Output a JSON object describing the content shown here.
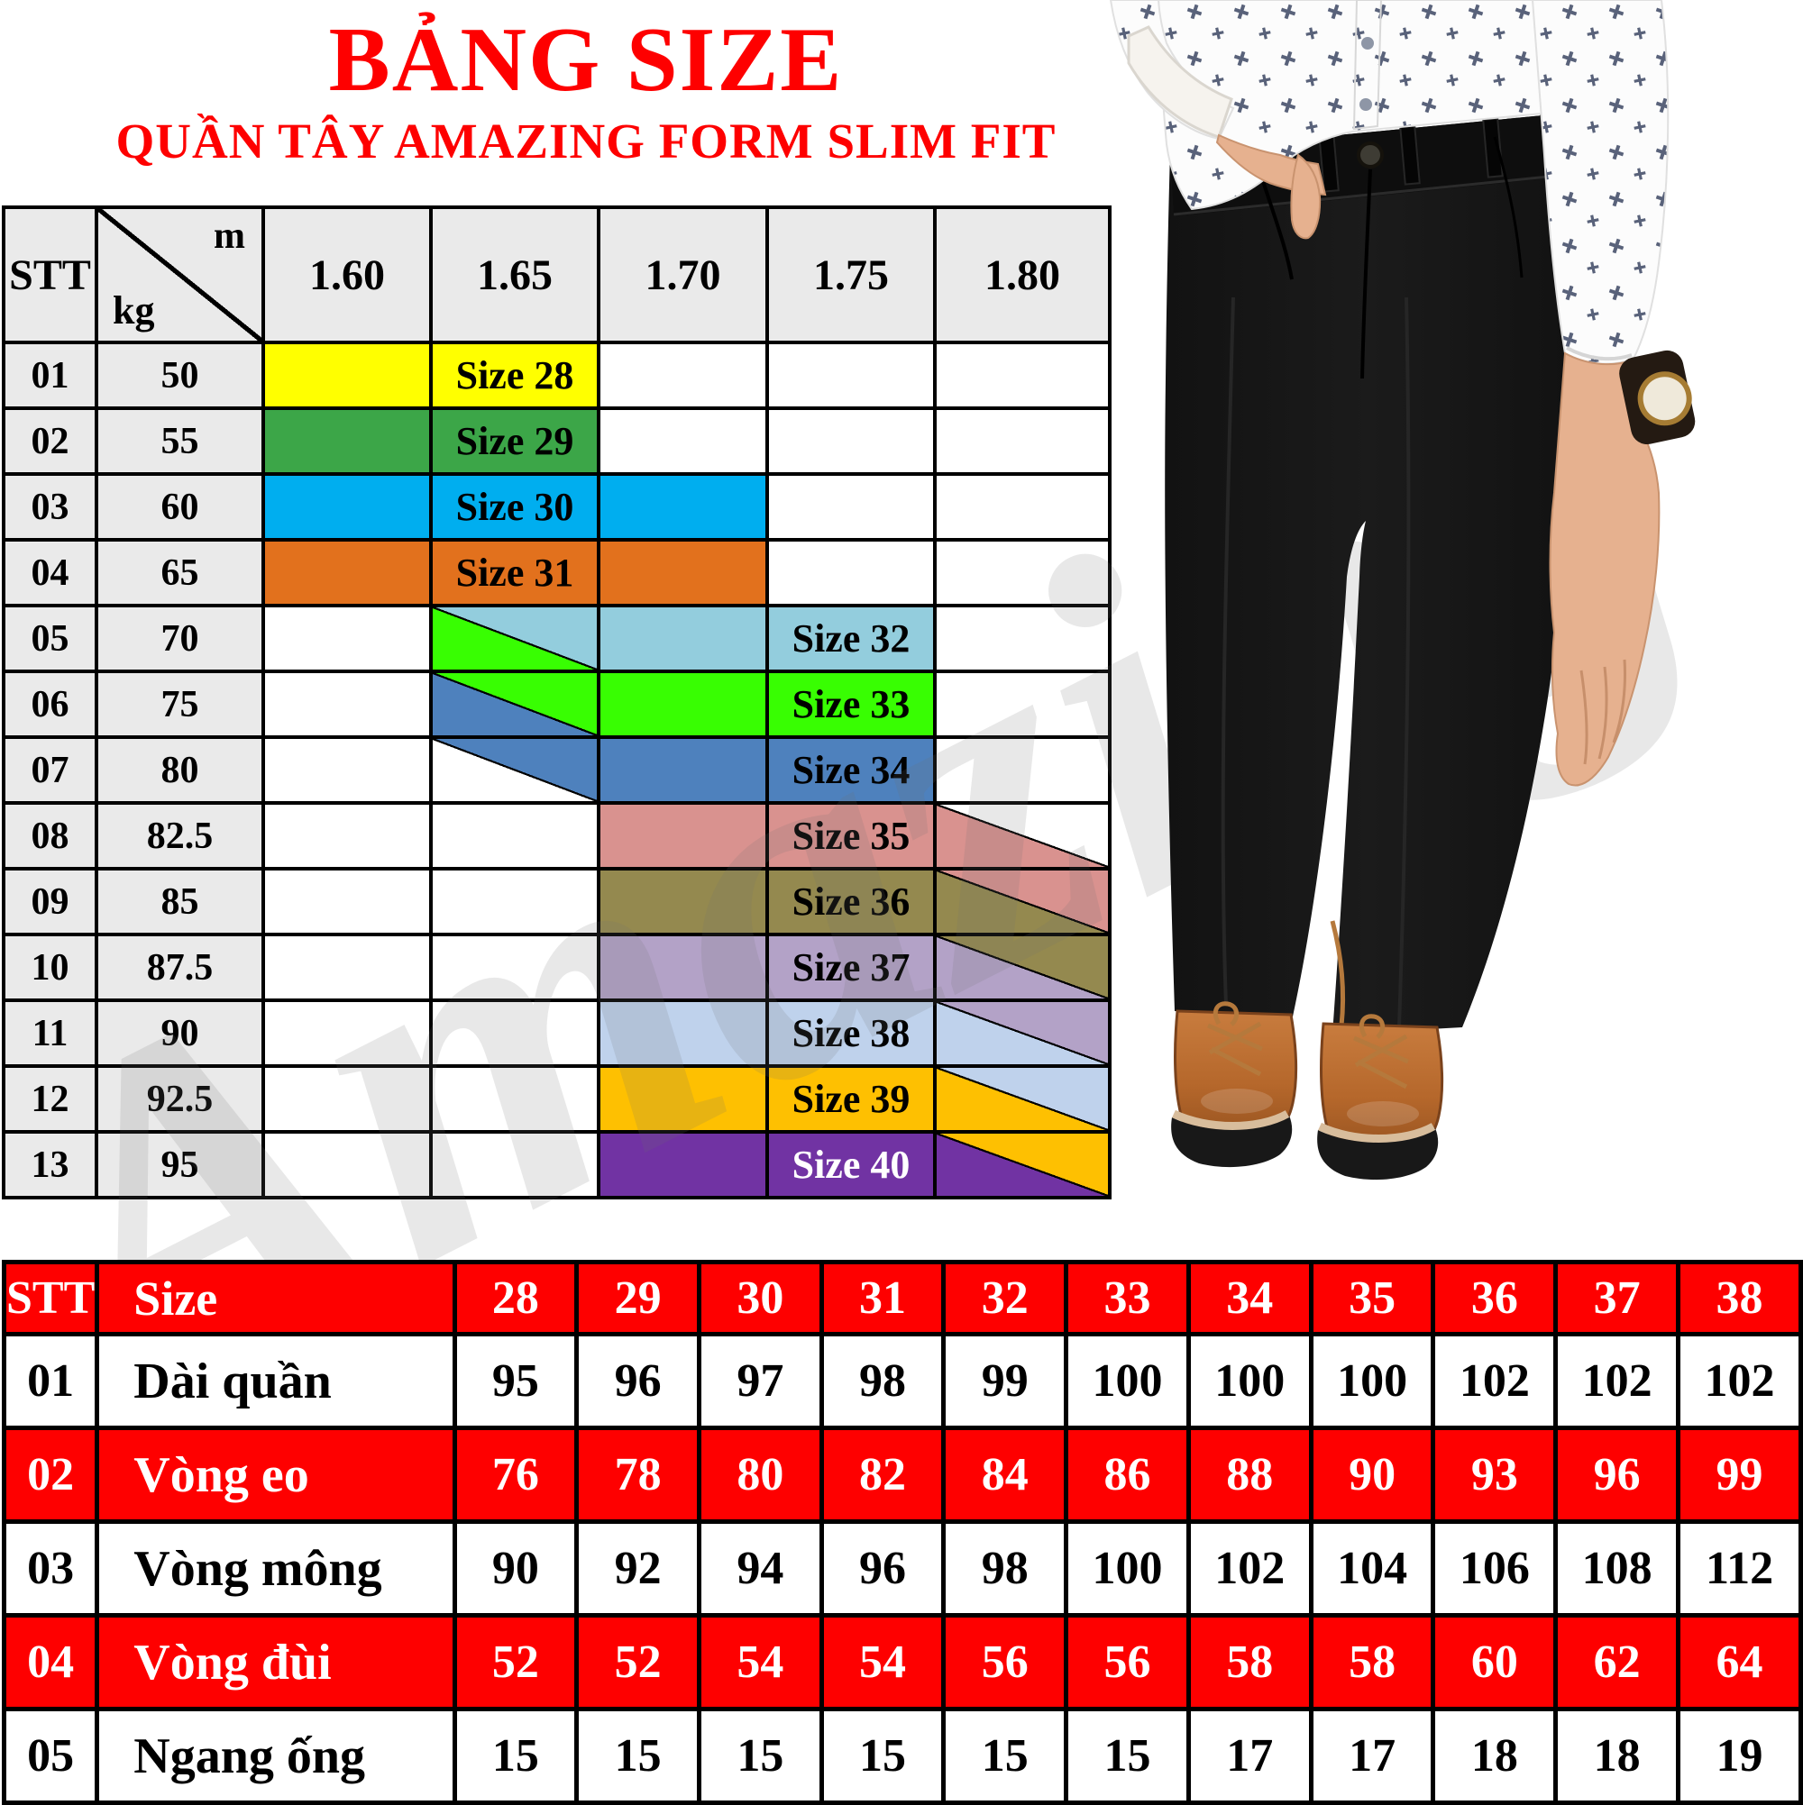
{
  "title": "BẢNG SIZE",
  "subtitle": "QUẦN TÂY AMAZING FORM SLIM FIT",
  "accent_red": "#FE0000",
  "watermark": {
    "text": "Amazing",
    "registered": "®"
  },
  "size_matrix": {
    "corner": {
      "stt": "STT",
      "col_label": "m",
      "row_label": "kg"
    },
    "height_headers": [
      "1.60",
      "1.65",
      "1.70",
      "1.75",
      "1.80"
    ],
    "rows": [
      {
        "stt": "01",
        "kg": "50",
        "cells": [
          {
            "bg": "#FFFF00"
          },
          {
            "bg": "#FFFF00",
            "label": "Size 28"
          },
          null,
          null,
          null
        ]
      },
      {
        "stt": "02",
        "kg": "55",
        "cells": [
          {
            "bg": "#3CA648"
          },
          {
            "bg": "#3CA648",
            "label": "Size 29"
          },
          null,
          null,
          null
        ]
      },
      {
        "stt": "03",
        "kg": "60",
        "cells": [
          {
            "bg": "#00AEEF"
          },
          {
            "bg": "#00AEEF",
            "label": "Size 30"
          },
          {
            "bg": "#00AEEF"
          },
          null,
          null
        ]
      },
      {
        "stt": "04",
        "kg": "65",
        "cells": [
          {
            "bg": "#E2711D"
          },
          {
            "bg": "#E2711D",
            "label": "Size 31"
          },
          {
            "bg": "#E2711D"
          },
          null,
          null
        ]
      },
      {
        "stt": "05",
        "kg": "70",
        "cells": [
          null,
          {
            "diag": {
              "lower": "#38FE02",
              "upper": "#93CDDD"
            }
          },
          {
            "bg": "#93CDDD"
          },
          {
            "bg": "#93CDDD",
            "label": "Size 32"
          },
          null
        ]
      },
      {
        "stt": "06",
        "kg": "75",
        "cells": [
          null,
          {
            "diag": {
              "lower": "#4E81BD",
              "upper": "#38FE02"
            }
          },
          {
            "bg": "#38FE02"
          },
          {
            "bg": "#38FE02",
            "label": "Size 33"
          },
          null
        ]
      },
      {
        "stt": "07",
        "kg": "80",
        "cells": [
          null,
          {
            "diag": {
              "lower": "#FFFFFF",
              "upper": "#4E81BD"
            }
          },
          {
            "bg": "#4E81BD"
          },
          {
            "bg": "#4E81BD",
            "label": "Size 34"
          },
          null
        ]
      },
      {
        "stt": "08",
        "kg": "82.5",
        "cells": [
          null,
          null,
          {
            "bg": "#D9928F"
          },
          {
            "bg": "#D9928F",
            "label": "Size 35"
          },
          {
            "diag": {
              "lower": "#D9928F",
              "upper": "#FFFFFF"
            }
          }
        ]
      },
      {
        "stt": "09",
        "kg": "85",
        "cells": [
          null,
          null,
          {
            "bg": "#94894F"
          },
          {
            "bg": "#94894F",
            "label": "Size 36"
          },
          {
            "diag": {
              "lower": "#94894F",
              "upper": "#D9928F"
            }
          }
        ]
      },
      {
        "stt": "10",
        "kg": "87.5",
        "cells": [
          null,
          null,
          {
            "bg": "#B3A2C7"
          },
          {
            "bg": "#B3A2C7",
            "label": "Size 37"
          },
          {
            "diag": {
              "lower": "#B3A2C7",
              "upper": "#94894F"
            }
          }
        ]
      },
      {
        "stt": "11",
        "kg": "90",
        "cells": [
          null,
          null,
          {
            "bg": "#BFD2EC"
          },
          {
            "bg": "#BFD2EC",
            "label": "Size 38"
          },
          {
            "diag": {
              "lower": "#BFD2EC",
              "upper": "#B3A2C7"
            }
          }
        ]
      },
      {
        "stt": "12",
        "kg": "92.5",
        "cells": [
          null,
          null,
          {
            "bg": "#FEC001"
          },
          {
            "bg": "#FEC001",
            "label": "Size 39"
          },
          {
            "diag": {
              "lower": "#FEC001",
              "upper": "#BFD2EC"
            }
          }
        ]
      },
      {
        "stt": "13",
        "kg": "95",
        "cells": [
          null,
          null,
          {
            "bg": "#7133A3"
          },
          {
            "bg": "#7133A3",
            "label": "Size 40",
            "fg": "#FFFFFF"
          },
          {
            "diag": {
              "lower": "#7133A3",
              "upper": "#FEC001"
            }
          }
        ]
      }
    ]
  },
  "measurements": {
    "headers": [
      "STT",
      "Size",
      "28",
      "29",
      "30",
      "31",
      "32",
      "33",
      "34",
      "35",
      "36",
      "37",
      "38"
    ],
    "rows": [
      {
        "stt": "01",
        "label": "Dài quần",
        "variant": "white",
        "values": [
          "95",
          "96",
          "97",
          "98",
          "99",
          "100",
          "100",
          "100",
          "102",
          "102",
          "102"
        ]
      },
      {
        "stt": "02",
        "label": "Vòng eo",
        "variant": "red",
        "values": [
          "76",
          "78",
          "80",
          "82",
          "84",
          "86",
          "88",
          "90",
          "93",
          "96",
          "99"
        ]
      },
      {
        "stt": "03",
        "label": "Vòng mông",
        "variant": "white",
        "values": [
          "90",
          "92",
          "94",
          "96",
          "98",
          "100",
          "102",
          "104",
          "106",
          "108",
          "112"
        ]
      },
      {
        "stt": "04",
        "label": "Vòng đùi",
        "variant": "red",
        "values": [
          "52",
          "52",
          "54",
          "54",
          "56",
          "56",
          "58",
          "58",
          "60",
          "62",
          "64"
        ]
      },
      {
        "stt": "05",
        "label": "Ngang ống",
        "variant": "white",
        "values": [
          "15",
          "15",
          "15",
          "15",
          "15",
          "15",
          "17",
          "17",
          "18",
          "18",
          "19"
        ]
      }
    ]
  }
}
